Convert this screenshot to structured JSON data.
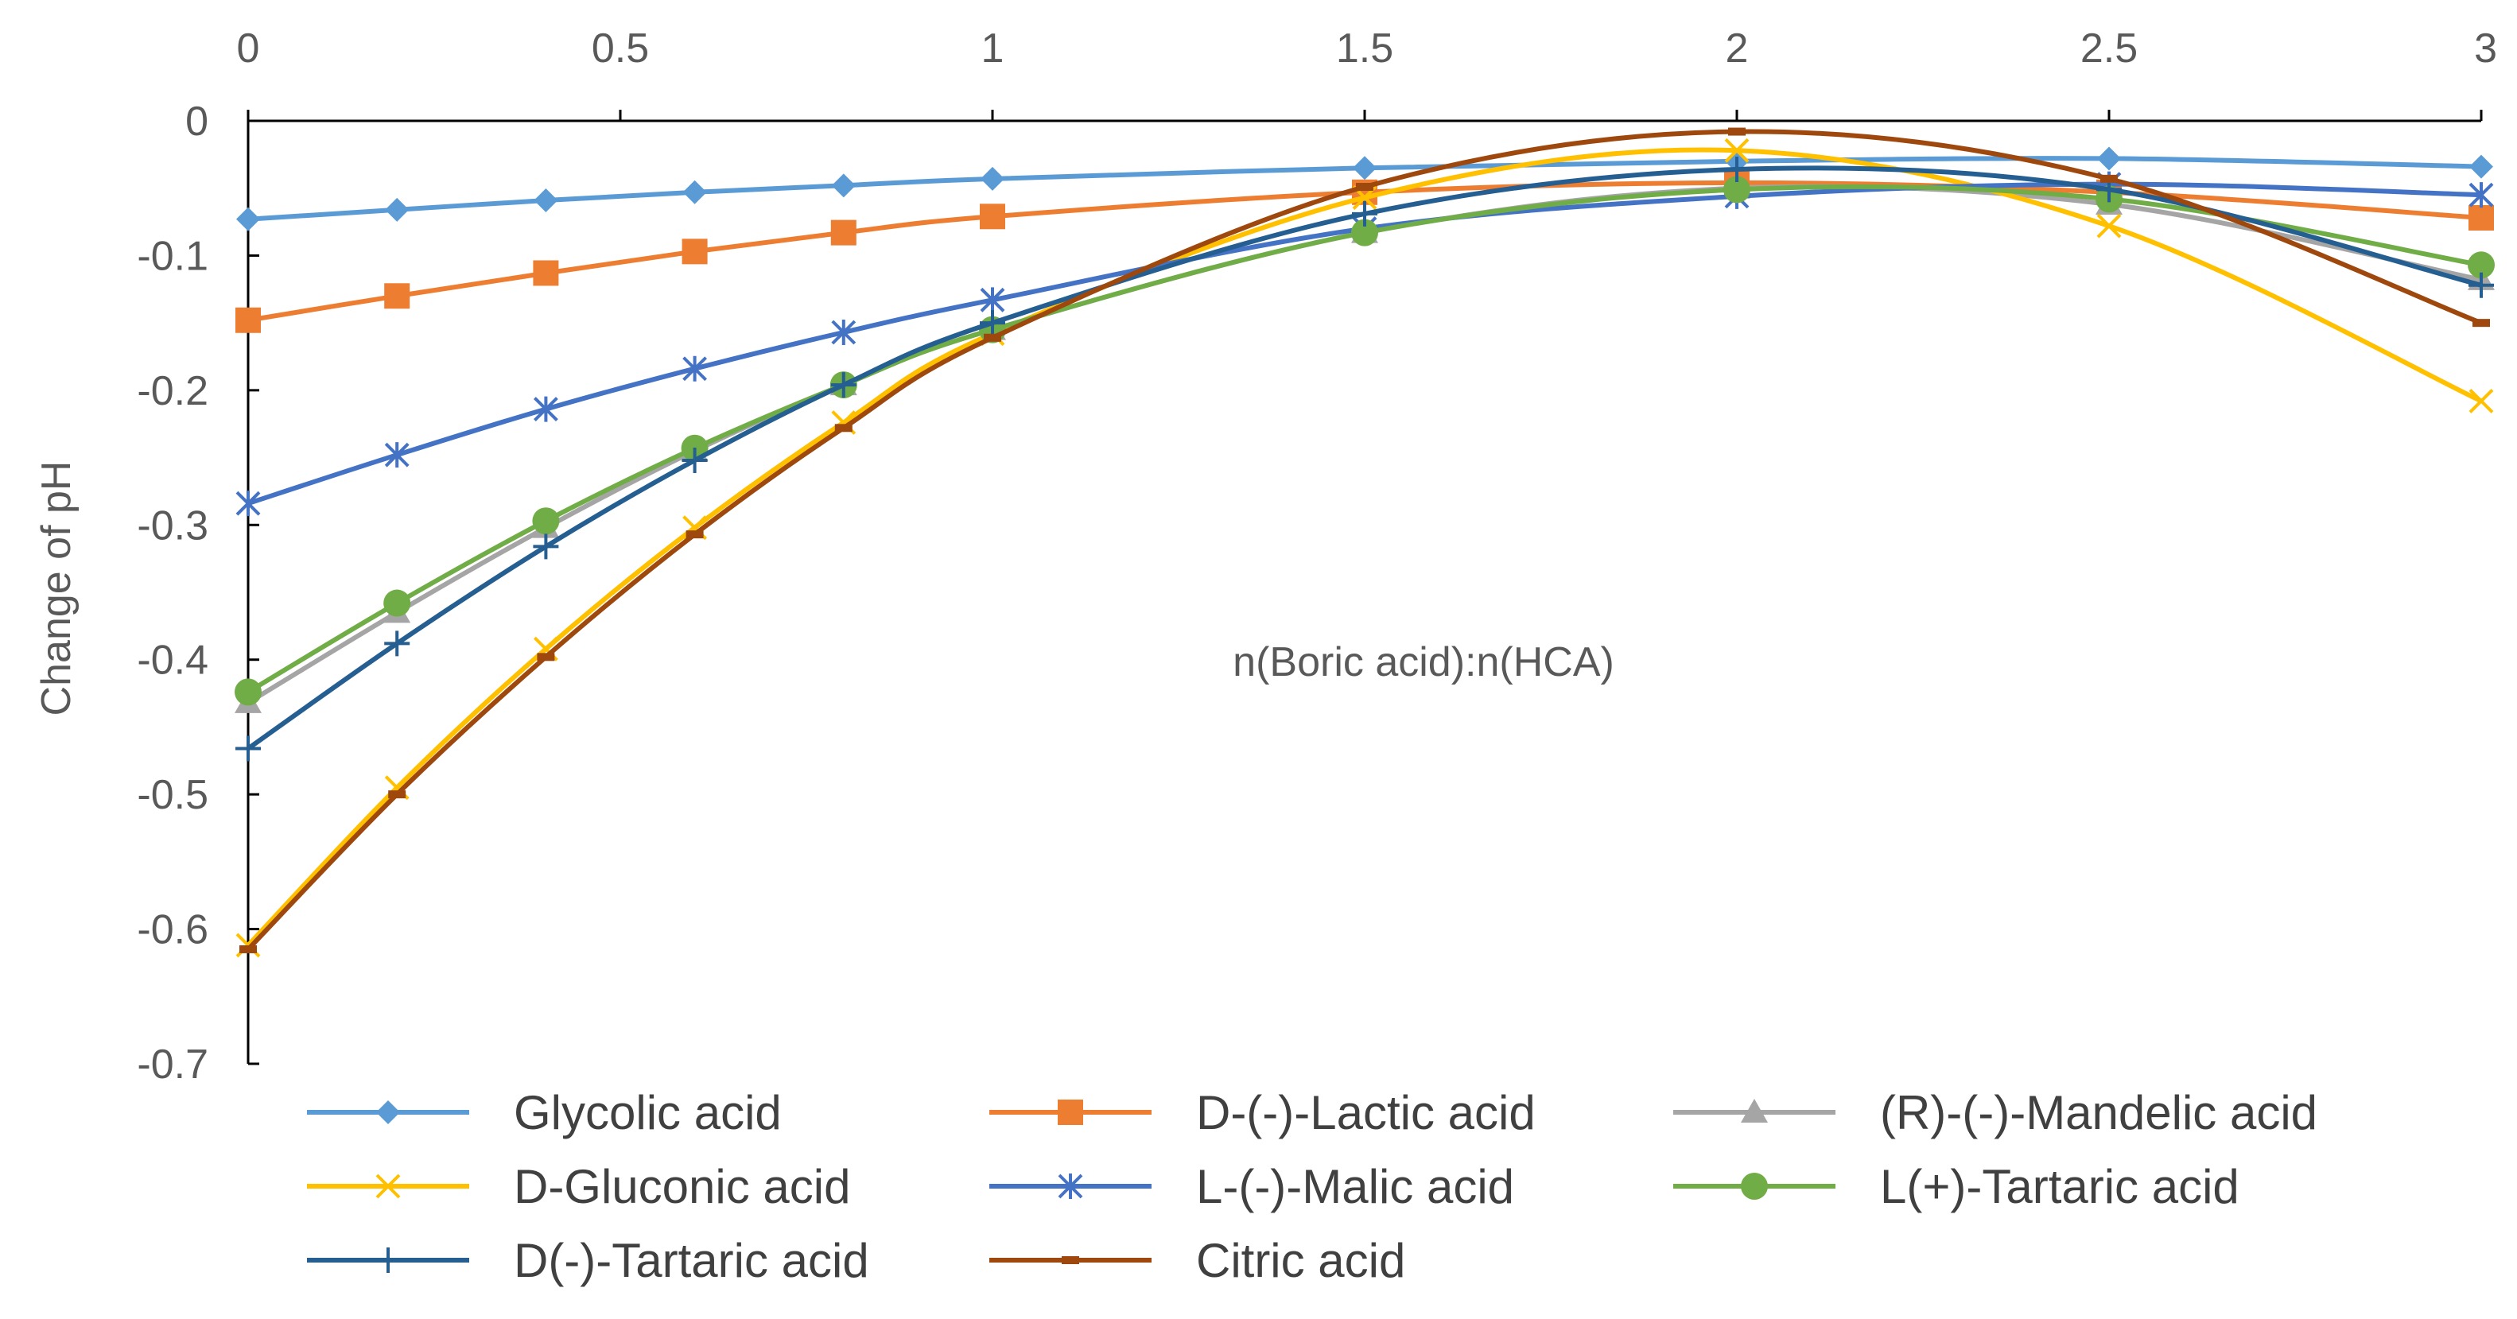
{
  "chart_data": {
    "type": "line",
    "title": "",
    "xlabel": "n(Boric acid):n(HCA)",
    "ylabel": "Change of pH",
    "xlim": [
      0,
      3
    ],
    "ylim": [
      -0.7,
      0
    ],
    "x_axis_position": "top",
    "xticks": [
      0,
      0.5,
      1,
      1.5,
      2,
      2.5,
      3
    ],
    "xtick_labels": [
      "0",
      "0.5",
      "1",
      "1.5",
      "2",
      "2.5",
      "3"
    ],
    "yticks": [
      0,
      -0.1,
      -0.2,
      -0.3,
      -0.4,
      -0.5,
      -0.6,
      -0.7
    ],
    "ytick_labels": [
      "0",
      "-0.1",
      "-0.2",
      "-0.3",
      "-0.4",
      "-0.5",
      "-0.6",
      "-0.7"
    ],
    "grid": false,
    "legend_position": "bottom",
    "x": [
      0,
      0.2,
      0.4,
      0.6,
      0.8,
      1,
      1.5,
      2,
      2.5,
      3
    ],
    "series": [
      {
        "name": "Glycolic acid",
        "color": "#5B9BD5",
        "marker": "diamond",
        "values": [
          -0.073,
          -0.066,
          -0.059,
          -0.053,
          -0.048,
          -0.043,
          -0.035,
          -0.03,
          -0.028,
          -0.034
        ]
      },
      {
        "name": "D-(-)-Lactic acid",
        "color": "#ED7D31",
        "marker": "square",
        "values": [
          -0.148,
          -0.13,
          -0.113,
          -0.097,
          -0.083,
          -0.071,
          -0.053,
          -0.046,
          -0.053,
          -0.072
        ]
      },
      {
        "name": "(R)-(-)-Mandelic acid",
        "color": "#A5A5A5",
        "marker": "triangle",
        "values": [
          -0.432,
          -0.365,
          -0.302,
          -0.245,
          -0.196,
          -0.155,
          -0.083,
          -0.05,
          -0.062,
          -0.118
        ]
      },
      {
        "name": "D-Gluconic acid",
        "color": "#FFC000",
        "marker": "x",
        "values": [
          -0.612,
          -0.495,
          -0.392,
          -0.302,
          -0.224,
          -0.158,
          -0.057,
          -0.022,
          -0.078,
          -0.208
        ]
      },
      {
        "name": "L-(-)-Malic acid",
        "color": "#4472C4",
        "marker": "star",
        "values": [
          -0.284,
          -0.248,
          -0.214,
          -0.184,
          -0.157,
          -0.133,
          -0.08,
          -0.056,
          -0.047,
          -0.055
        ]
      },
      {
        "name": "L(+)-Tartaric acid",
        "color": "#70AD47",
        "marker": "circle",
        "values": [
          -0.424,
          -0.358,
          -0.297,
          -0.243,
          -0.196,
          -0.155,
          -0.083,
          -0.051,
          -0.058,
          -0.107
        ]
      },
      {
        "name": "D(-)-Tartaric acid",
        "color": "#255E91",
        "marker": "plus",
        "values": [
          -0.466,
          -0.388,
          -0.316,
          -0.252,
          -0.196,
          -0.15,
          -0.069,
          -0.036,
          -0.051,
          -0.122
        ]
      },
      {
        "name": "Citric acid",
        "color": "#9E480E",
        "marker": "dash",
        "values": [
          -0.615,
          -0.5,
          -0.398,
          -0.307,
          -0.228,
          -0.161,
          -0.049,
          -0.008,
          -0.043,
          -0.15
        ]
      }
    ]
  }
}
